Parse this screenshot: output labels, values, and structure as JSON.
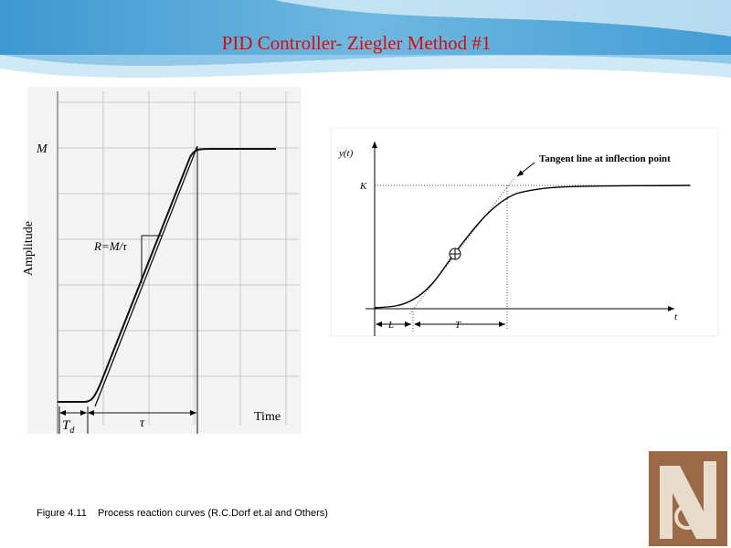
{
  "header": {
    "title": "PID Controller- Ziegler Method #1"
  },
  "left_figure": {
    "m_label": "M",
    "y_axis_label": "Amplitude",
    "slope_label": "R=M/τ",
    "td_main": "T",
    "td_sub": "d",
    "tau_label": "τ",
    "x_axis_label": "Time"
  },
  "right_figure": {
    "y_axis_label": "y(t)",
    "k_label": "K",
    "annotation": "Tangent line at inflection point",
    "l_label": "L",
    "t_span_label": "T",
    "x_axis_label": "t"
  },
  "caption": "Figure 4.11    Process reaction curves (R.C.Dorf et.al and Others)"
}
